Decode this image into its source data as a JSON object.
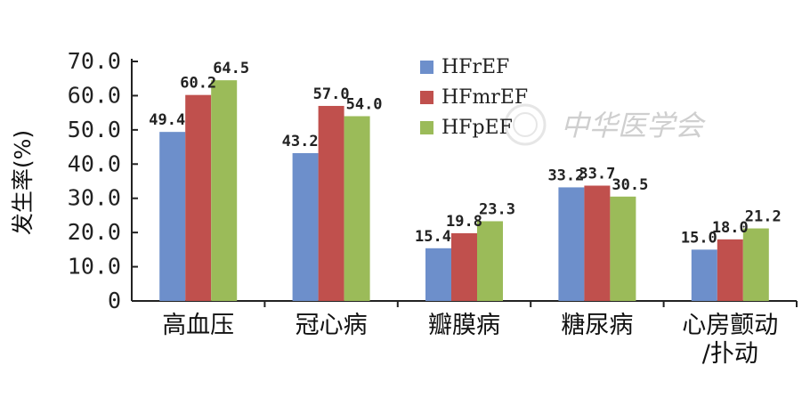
{
  "chart_data": {
    "type": "bar",
    "title": "",
    "xlabel": "",
    "ylabel": "发生率(%)",
    "ylim": [
      0,
      70
    ],
    "yticks": [
      "0",
      "10.0",
      "20.0",
      "30.0",
      "40.0",
      "50.0",
      "60.0",
      "70.0"
    ],
    "grid": false,
    "legend_position": "top-center",
    "categories": [
      [
        "高血压"
      ],
      [
        "冠心病"
      ],
      [
        "瓣膜病"
      ],
      [
        "糖尿病"
      ],
      [
        "心房颤动",
        "/扑动"
      ]
    ],
    "series": [
      {
        "name": "HFrEF",
        "color": "#6d8fcb",
        "values": [
          49.4,
          43.2,
          15.4,
          33.2,
          15.0
        ],
        "labels": [
          "49.4",
          "43.2",
          "15.4",
          "33.2",
          "15.0"
        ]
      },
      {
        "name": "HFmrEF",
        "color": "#c0504d",
        "values": [
          60.2,
          57.0,
          19.8,
          33.7,
          18.0
        ],
        "labels": [
          "60.2",
          "57.0",
          "19.8",
          "33.7",
          "18.0"
        ]
      },
      {
        "name": "HFpEF",
        "color": "#9bbb59",
        "values": [
          64.5,
          54.0,
          23.3,
          30.5,
          21.2
        ],
        "labels": [
          "64.5",
          "54.0",
          "23.3",
          "30.5",
          "21.2"
        ]
      }
    ]
  },
  "watermark": {
    "text": "中华医学会",
    "icon": "seal-logo-icon"
  }
}
